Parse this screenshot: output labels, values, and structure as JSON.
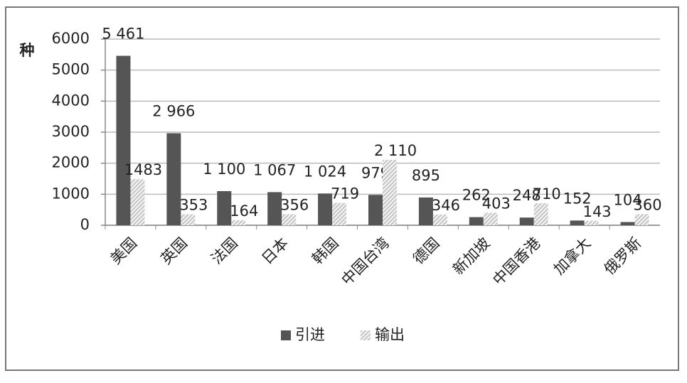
{
  "chart_data": {
    "type": "bar",
    "y_label": "种",
    "categories": [
      "美国",
      "英国",
      "法国",
      "日本",
      "韩国",
      "中国台湾",
      "德国",
      "新加坡",
      "中国香港",
      "加拿大",
      "俄罗斯"
    ],
    "series": [
      {
        "name": "引进",
        "color": "#555555",
        "values": [
          5461,
          2966,
          1100,
          1067,
          1024,
          979,
          895,
          262,
          248,
          152,
          104
        ],
        "value_labels": [
          "5 461",
          "2 966",
          "1 100",
          "1 067",
          "1 024",
          "979",
          "895",
          "262",
          "248",
          "152",
          "104"
        ]
      },
      {
        "name": "输出",
        "color": "#aaaaaa",
        "values": [
          1483,
          353,
          164,
          356,
          719,
          2110,
          346,
          403,
          710,
          143,
          360
        ],
        "value_labels": [
          "1483",
          "353",
          "164",
          "356",
          "719",
          "2 110",
          "346",
          "403",
          "710",
          "143",
          "360"
        ]
      }
    ],
    "ylim": [
      0,
      6000
    ],
    "yticks": [
      0,
      1000,
      2000,
      3000,
      4000,
      5000,
      6000
    ],
    "grid": true,
    "legend": "bottom"
  }
}
